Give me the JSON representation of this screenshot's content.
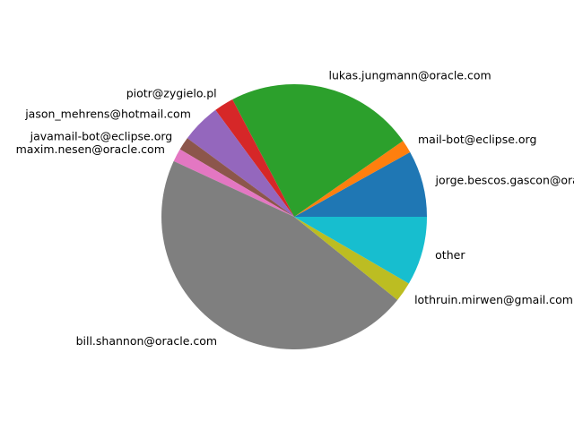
{
  "chart_data": {
    "type": "pie",
    "title": "",
    "start_angle_deg": 0,
    "direction": "counterclockwise",
    "slices": [
      {
        "label": "jorge.bescos.gascon@oracle.com",
        "value": 8.1,
        "color": "#1f77b4"
      },
      {
        "label": "mail-bot@eclipse.org",
        "value": 1.6,
        "color": "#ff7f0e"
      },
      {
        "label": "lukas.jungmann@oracle.com",
        "value": 23.0,
        "color": "#2ca02c"
      },
      {
        "label": "piotr@zygielo.pl",
        "value": 2.4,
        "color": "#d62728"
      },
      {
        "label": "jason_mehrens@hotmail.com",
        "value": 4.8,
        "color": "#9467bd"
      },
      {
        "label": "javamail-bot@eclipse.org",
        "value": 1.6,
        "color": "#8c564b"
      },
      {
        "label": "maxim.nesen@oracle.com",
        "value": 1.6,
        "color": "#e377c2"
      },
      {
        "label": "bill.shannon@oracle.com",
        "value": 46.1,
        "color": "#7f7f7f"
      },
      {
        "label": "lothruin.mirwen@gmail.com",
        "value": 2.4,
        "color": "#bcbd22"
      },
      {
        "label": "other",
        "value": 8.4,
        "color": "#17becf"
      }
    ]
  }
}
